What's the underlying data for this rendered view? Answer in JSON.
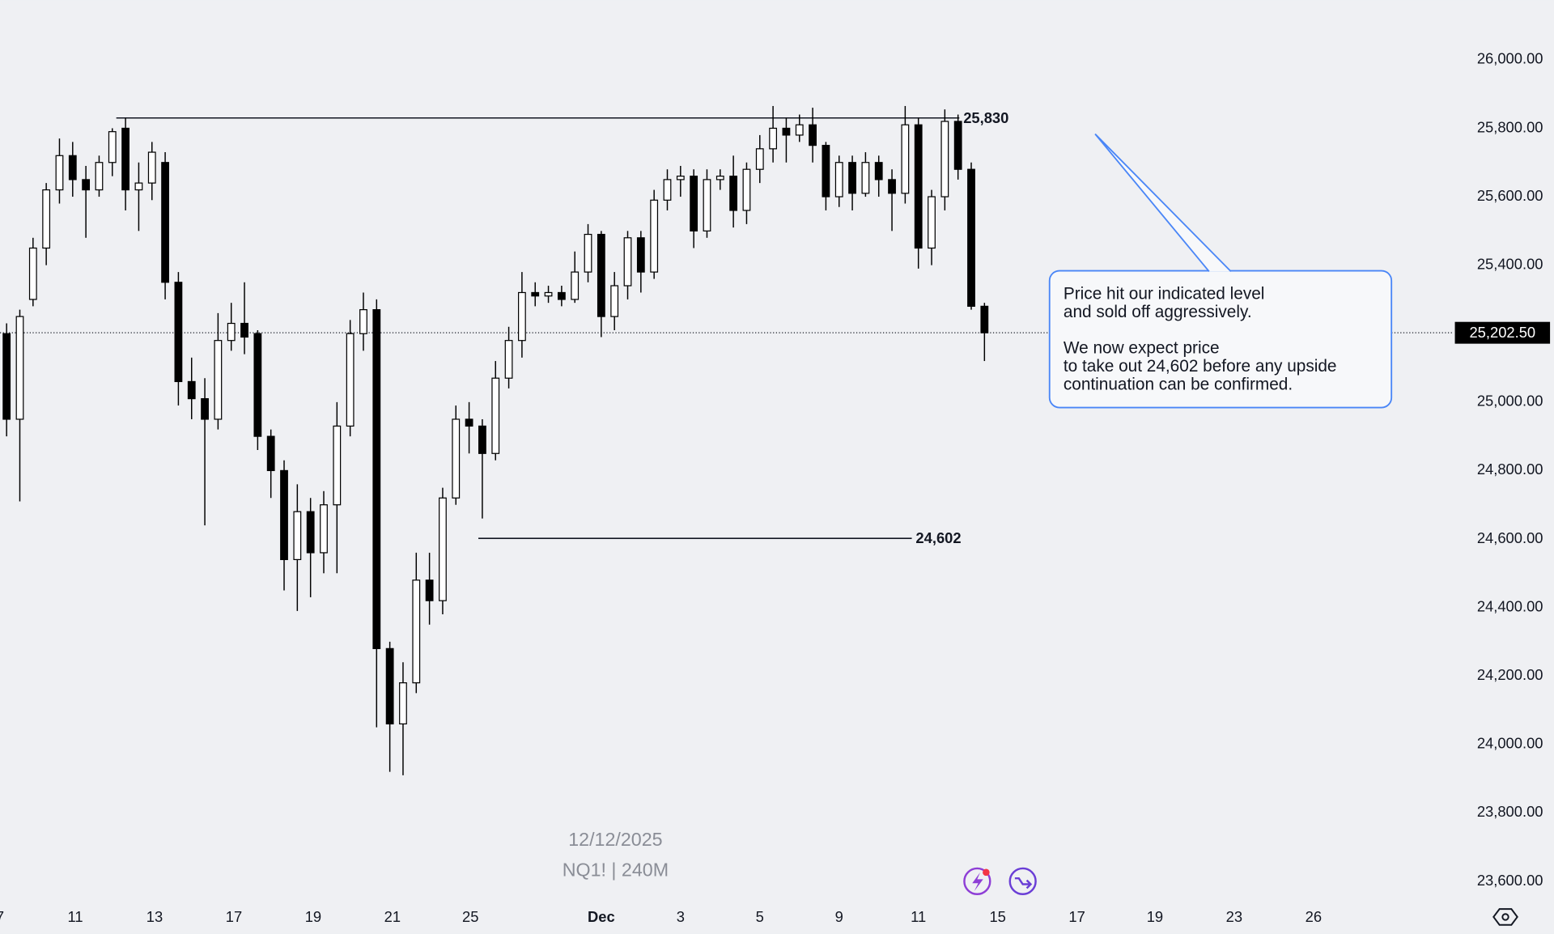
{
  "chart_data": {
    "type": "candlestick",
    "x": [
      0,
      1,
      2,
      3,
      4,
      5,
      6,
      7,
      8,
      9,
      10,
      11,
      12,
      13,
      14,
      15,
      16,
      17,
      18,
      19,
      20,
      21,
      22,
      23,
      24,
      25,
      26,
      27,
      28,
      29,
      30,
      31,
      32,
      33,
      34,
      35,
      36,
      37,
      38,
      39,
      40,
      41,
      42,
      43,
      44,
      45,
      46,
      47,
      48,
      49,
      50,
      51,
      52,
      53,
      54,
      55,
      56,
      57,
      58,
      59,
      60,
      61,
      62,
      63,
      64,
      65,
      66,
      67,
      68,
      69,
      70,
      71,
      72,
      73,
      74
    ],
    "open": [
      25200,
      24950,
      25300,
      25450,
      25620,
      25720,
      25650,
      25620,
      25700,
      25800,
      25620,
      25640,
      25700,
      25350,
      25060,
      25010,
      24950,
      25180,
      25230,
      25200,
      24900,
      24800,
      24540,
      24680,
      24560,
      24700,
      24930,
      25200,
      25270,
      24280,
      24060,
      24180,
      24480,
      24420,
      24720,
      24950,
      24930,
      24850,
      25070,
      25180,
      25320,
      25310,
      25320,
      25300,
      25380,
      25490,
      25250,
      25340,
      25480,
      25380,
      25590,
      25650,
      25660,
      25500,
      25650,
      25660,
      25560,
      25680,
      25740,
      25800,
      25780,
      25810,
      25750,
      25600,
      25700,
      25610,
      25700,
      25650,
      25610,
      25810,
      25450,
      25600,
      25820,
      25680,
      25280
    ],
    "high": [
      25230,
      25270,
      25480,
      25640,
      25770,
      25760,
      25690,
      25720,
      25800,
      25830,
      25700,
      25760,
      25730,
      25380,
      25130,
      25070,
      25260,
      25290,
      25350,
      25210,
      24920,
      24830,
      24760,
      24720,
      24740,
      25000,
      25240,
      25320,
      25300,
      24300,
      24240,
      24560,
      24560,
      24750,
      24990,
      25000,
      24950,
      25120,
      25220,
      25380,
      25350,
      25340,
      25340,
      25440,
      25520,
      25500,
      25380,
      25500,
      25500,
      25620,
      25680,
      25690,
      25680,
      25680,
      25680,
      25720,
      25700,
      25780,
      25865,
      25830,
      25840,
      25860,
      25760,
      25720,
      25720,
      25730,
      25720,
      25680,
      25865,
      25830,
      25620,
      25855,
      25840,
      25700,
      25290
    ],
    "low": [
      24900,
      24710,
      25280,
      25400,
      25580,
      25600,
      25480,
      25600,
      25660,
      25560,
      25500,
      25590,
      25300,
      24990,
      24950,
      24640,
      24920,
      25150,
      25140,
      24860,
      24720,
      24450,
      24390,
      24430,
      24500,
      24500,
      24900,
      25150,
      24050,
      23920,
      23910,
      24150,
      24350,
      24380,
      24700,
      24850,
      24660,
      24830,
      25040,
      25130,
      25280,
      25290,
      25280,
      25290,
      25350,
      25190,
      25210,
      25300,
      25320,
      25360,
      25560,
      25600,
      25450,
      25480,
      25620,
      25510,
      25520,
      25640,
      25700,
      25700,
      25760,
      25700,
      25560,
      25570,
      25560,
      25600,
      25600,
      25500,
      25580,
      25390,
      25400,
      25560,
      25650,
      25270,
      25120
    ],
    "close": [
      24950,
      25250,
      25450,
      25620,
      25720,
      25650,
      25620,
      25700,
      25790,
      25620,
      25640,
      25730,
      25350,
      25060,
      25010,
      24950,
      25180,
      25230,
      25190,
      24900,
      24800,
      24540,
      24680,
      24560,
      24700,
      24930,
      25200,
      25270,
      24280,
      24060,
      24180,
      24480,
      24420,
      24720,
      24950,
      24930,
      24850,
      25070,
      25180,
      25320,
      25310,
      25320,
      25300,
      25380,
      25490,
      25250,
      25340,
      25480,
      25380,
      25590,
      25650,
      25660,
      25500,
      25650,
      25660,
      25560,
      25680,
      25740,
      25800,
      25780,
      25810,
      25750,
      25600,
      25700,
      25610,
      25700,
      25650,
      25610,
      25810,
      25450,
      25600,
      25820,
      25680,
      25280,
      25202.5
    ],
    "up_color": "#ffffff",
    "down_color": "#000000",
    "xlim": [
      -0.5,
      109
    ],
    "xticks": [
      {
        "value": -0.5,
        "label": "7"
      },
      {
        "value": 5.2,
        "label": "11"
      },
      {
        "value": 11.2,
        "label": "13"
      },
      {
        "value": 17.2,
        "label": "17"
      },
      {
        "value": 23.2,
        "label": "19"
      },
      {
        "value": 29.2,
        "label": "21"
      },
      {
        "value": 35.1,
        "label": "25"
      },
      {
        "value": 45.0,
        "label": "Dec"
      },
      {
        "value": 51.0,
        "label": "3"
      },
      {
        "value": 57.0,
        "label": "5"
      },
      {
        "value": 63.0,
        "label": "9"
      },
      {
        "value": 69.0,
        "label": "11"
      },
      {
        "value": 75.0,
        "label": "15"
      },
      {
        "value": 81.0,
        "label": "17"
      },
      {
        "value": 86.9,
        "label": "19"
      },
      {
        "value": 92.9,
        "label": "23"
      },
      {
        "value": 98.9,
        "label": "26"
      }
    ],
    "ylim": [
      23554,
      26174
    ],
    "yticks": [
      {
        "value": 23600,
        "label": "23,600.00"
      },
      {
        "value": 23800,
        "label": "23,800.00"
      },
      {
        "value": 24000,
        "label": "24,000.00"
      },
      {
        "value": 24200,
        "label": "24,200.00"
      },
      {
        "value": 24400,
        "label": "24,400.00"
      },
      {
        "value": 24600,
        "label": "24,600.00"
      },
      {
        "value": 24800,
        "label": "24,800.00"
      },
      {
        "value": 25000,
        "label": "25,000.00"
      },
      {
        "value": 25200,
        "label": "25,200.00"
      },
      {
        "value": 25400,
        "label": "25,400.00"
      },
      {
        "value": 25600,
        "label": "25,600.00"
      },
      {
        "value": 25800,
        "label": "25,800.00"
      },
      {
        "value": 26000,
        "label": "26,000.00"
      }
    ],
    "levels": [
      {
        "value": 25830,
        "label": "25,830",
        "x": [
          8.3,
          76.0
        ]
      },
      {
        "value": 24602,
        "label": "24,602",
        "x": [
          35.7,
          72.4
        ]
      }
    ],
    "last_price": {
      "value": 25202.5,
      "label": "25,202.50"
    },
    "watermark": [
      "12/12/2025",
      "NQ1! | 240M"
    ],
    "annotation": [
      [
        "Price hit our indicated level",
        "and sold off aggressively."
      ],
      [
        "We now expect price",
        "to take out 24,602 before any upside",
        "continuation can be confirmed."
      ]
    ]
  }
}
